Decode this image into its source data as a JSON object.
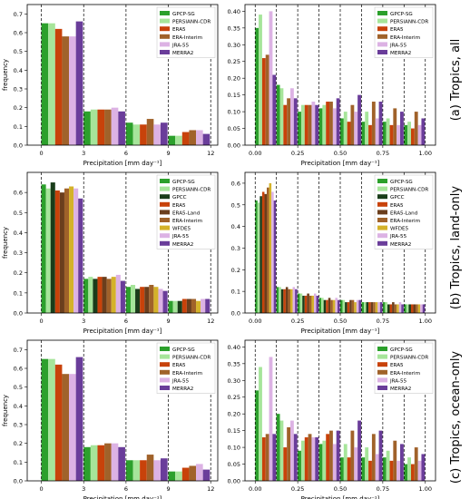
{
  "figure": {
    "row_labels": [
      "(a) Tropics, all",
      "(b) Tropics, land-only",
      "(c) Tropics, ocean-only"
    ]
  },
  "colors": {
    "GPCP-SG": "#2ca02c",
    "PERSIANN-CDR": "#a6e59a",
    "GPCC": "#1a3d1a",
    "ERA5": "#c8420a",
    "ERA5-Land": "#6b3e1c",
    "ERA-Interim": "#a0622a",
    "WFDE5": "#d4b22a",
    "JRA-55": "#dcb2e4",
    "MERRA2": "#6a3d9a"
  },
  "chart_data": [
    {
      "id": "a-left",
      "type": "bar",
      "xlabel": "Precipitation [mm day⁻¹]",
      "ylabel": "frequency",
      "xlim": [
        -1,
        12.5
      ],
      "ylim": [
        0,
        0.75
      ],
      "xticks": [
        0,
        3,
        6,
        9,
        12
      ],
      "yticks": [
        0,
        0.1,
        0.2,
        0.3,
        0.4,
        0.5,
        0.6,
        0.7
      ],
      "bin_edges": [
        0,
        3,
        6,
        9,
        12
      ],
      "legend_loc": "upper right",
      "series": [
        {
          "name": "GPCP-SG",
          "values": [
            0.65,
            0.18,
            0.12,
            0.05
          ]
        },
        {
          "name": "PERSIANN-CDR",
          "values": [
            0.65,
            0.19,
            0.11,
            0.05
          ]
        },
        {
          "name": "ERA5",
          "values": [
            0.62,
            0.19,
            0.11,
            0.07
          ]
        },
        {
          "name": "ERA-Interim",
          "values": [
            0.58,
            0.19,
            0.14,
            0.08
          ]
        },
        {
          "name": "JRA-55",
          "values": [
            0.58,
            0.2,
            0.11,
            0.08
          ]
        },
        {
          "name": "MERRA2",
          "values": [
            0.66,
            0.18,
            0.12,
            0.06
          ]
        }
      ]
    },
    {
      "id": "a-right",
      "type": "bar",
      "xlabel": "Precipitation [mm day⁻¹]",
      "ylabel": "",
      "xlim": [
        -0.06,
        1.06
      ],
      "ylim": [
        0,
        0.42
      ],
      "xticks": [
        0,
        0.25,
        0.5,
        0.75,
        1.0
      ],
      "yticks": [
        0,
        0.05,
        0.1,
        0.15,
        0.2,
        0.25,
        0.3,
        0.35,
        0.4
      ],
      "bin_edges": [
        0,
        0.125,
        0.25,
        0.375,
        0.5,
        0.625,
        0.75,
        0.875,
        1.0
      ],
      "legend_loc": "upper right",
      "series": [
        {
          "name": "GPCP-SG",
          "values": [
            0.35,
            0.18,
            0.1,
            0.11,
            0.08,
            0.07,
            0.07,
            0.06
          ]
        },
        {
          "name": "PERSIANN-CDR",
          "values": [
            0.39,
            0.17,
            0.12,
            0.12,
            0.1,
            0.1,
            0.08,
            0.07
          ]
        },
        {
          "name": "ERA5",
          "values": [
            0.26,
            0.12,
            0.12,
            0.13,
            0.07,
            0.06,
            0.06,
            0.05
          ]
        },
        {
          "name": "ERA-Interim",
          "values": [
            0.27,
            0.14,
            0.12,
            0.13,
            0.12,
            0.13,
            0.11,
            0.1
          ]
        },
        {
          "name": "JRA-55",
          "values": [
            0.4,
            0.17,
            0.13,
            0.11,
            0.1,
            0.08,
            0.06,
            0.06
          ]
        },
        {
          "name": "MERRA2",
          "values": [
            0.21,
            0.14,
            0.12,
            0.14,
            0.15,
            0.13,
            0.1,
            0.08
          ]
        }
      ]
    },
    {
      "id": "b-left",
      "type": "bar",
      "xlabel": "Precipitation [mm day⁻¹]",
      "ylabel": "frequency",
      "xlim": [
        -1,
        12.5
      ],
      "ylim": [
        0,
        0.7
      ],
      "xticks": [
        0,
        3,
        6,
        9,
        12
      ],
      "yticks": [
        0,
        0.1,
        0.2,
        0.3,
        0.4,
        0.5,
        0.6
      ],
      "bin_edges": [
        0,
        3,
        6,
        9,
        12
      ],
      "legend_loc": "upper right",
      "series": [
        {
          "name": "GPCP-SG",
          "values": [
            0.64,
            0.17,
            0.13,
            0.06
          ]
        },
        {
          "name": "PERSIANN-CDR",
          "values": [
            0.62,
            0.18,
            0.14,
            0.06
          ]
        },
        {
          "name": "GPCC",
          "values": [
            0.65,
            0.17,
            0.12,
            0.06
          ]
        },
        {
          "name": "ERA5",
          "values": [
            0.61,
            0.18,
            0.13,
            0.07
          ]
        },
        {
          "name": "ERA5-Land",
          "values": [
            0.6,
            0.18,
            0.13,
            0.07
          ]
        },
        {
          "name": "ERA-Interim",
          "values": [
            0.62,
            0.17,
            0.14,
            0.07
          ]
        },
        {
          "name": "WFDE5",
          "values": [
            0.63,
            0.18,
            0.13,
            0.06
          ]
        },
        {
          "name": "JRA-55",
          "values": [
            0.62,
            0.19,
            0.12,
            0.07
          ]
        },
        {
          "name": "MERRA2",
          "values": [
            0.57,
            0.16,
            0.11,
            0.07
          ]
        }
      ]
    },
    {
      "id": "b-right",
      "type": "bar",
      "xlabel": "Precipitation [mm day⁻¹]",
      "ylabel": "",
      "xlim": [
        -0.06,
        1.06
      ],
      "ylim": [
        0,
        0.65
      ],
      "xticks": [
        0,
        0.25,
        0.5,
        0.75,
        1.0
      ],
      "yticks": [
        0,
        0.1,
        0.2,
        0.3,
        0.4,
        0.5,
        0.6
      ],
      "bin_edges": [
        0,
        0.125,
        0.25,
        0.375,
        0.5,
        0.625,
        0.75,
        0.875,
        1.0
      ],
      "legend_loc": "upper right",
      "series": [
        {
          "name": "GPCP-SG",
          "values": [
            0.52,
            0.12,
            0.09,
            0.07,
            0.06,
            0.05,
            0.05,
            0.04
          ]
        },
        {
          "name": "PERSIANN-CDR",
          "values": [
            0.51,
            0.12,
            0.09,
            0.07,
            0.06,
            0.05,
            0.05,
            0.04
          ]
        },
        {
          "name": "GPCC",
          "values": [
            0.54,
            0.11,
            0.08,
            0.06,
            0.05,
            0.05,
            0.04,
            0.04
          ]
        },
        {
          "name": "ERA5",
          "values": [
            0.56,
            0.11,
            0.08,
            0.06,
            0.05,
            0.05,
            0.04,
            0.04
          ]
        },
        {
          "name": "ERA5-Land",
          "values": [
            0.55,
            0.12,
            0.09,
            0.07,
            0.06,
            0.05,
            0.05,
            0.04
          ]
        },
        {
          "name": "ERA-Interim",
          "values": [
            0.58,
            0.11,
            0.08,
            0.06,
            0.06,
            0.05,
            0.04,
            0.04
          ]
        },
        {
          "name": "WFDE5",
          "values": [
            0.6,
            0.11,
            0.08,
            0.06,
            0.05,
            0.05,
            0.04,
            0.04
          ]
        },
        {
          "name": "JRA-55",
          "values": [
            0.56,
            0.12,
            0.09,
            0.07,
            0.06,
            0.05,
            0.05,
            0.04
          ]
        },
        {
          "name": "MERRA2",
          "values": [
            0.52,
            0.11,
            0.08,
            0.06,
            0.06,
            0.05,
            0.04,
            0.04
          ]
        }
      ]
    },
    {
      "id": "c-left",
      "type": "bar",
      "xlabel": "Precipitation [mm day⁻¹]",
      "ylabel": "frequency",
      "xlim": [
        -1,
        12.5
      ],
      "ylim": [
        0,
        0.75
      ],
      "xticks": [
        0,
        3,
        6,
        9,
        12
      ],
      "yticks": [
        0,
        0.1,
        0.2,
        0.3,
        0.4,
        0.5,
        0.6,
        0.7
      ],
      "bin_edges": [
        0,
        3,
        6,
        9,
        12
      ],
      "legend_loc": "upper right",
      "series": [
        {
          "name": "GPCP-SG",
          "values": [
            0.65,
            0.18,
            0.11,
            0.05
          ]
        },
        {
          "name": "PERSIANN-CDR",
          "values": [
            0.65,
            0.19,
            0.11,
            0.05
          ]
        },
        {
          "name": "ERA5",
          "values": [
            0.62,
            0.19,
            0.11,
            0.07
          ]
        },
        {
          "name": "ERA-Interim",
          "values": [
            0.57,
            0.2,
            0.14,
            0.08
          ]
        },
        {
          "name": "JRA-55",
          "values": [
            0.57,
            0.2,
            0.11,
            0.09
          ]
        },
        {
          "name": "MERRA2",
          "values": [
            0.66,
            0.18,
            0.12,
            0.06
          ]
        }
      ]
    },
    {
      "id": "c-right",
      "type": "bar",
      "xlabel": "Precipitation [mm day⁻¹]",
      "ylabel": "",
      "xlim": [
        -0.06,
        1.06
      ],
      "ylim": [
        0,
        0.42
      ],
      "xticks": [
        0,
        0.25,
        0.5,
        0.75,
        1.0
      ],
      "yticks": [
        0,
        0.05,
        0.1,
        0.15,
        0.2,
        0.25,
        0.3,
        0.35,
        0.4
      ],
      "bin_edges": [
        0,
        0.125,
        0.25,
        0.375,
        0.5,
        0.625,
        0.75,
        0.875,
        1.0
      ],
      "legend_loc": "upper right",
      "series": [
        {
          "name": "GPCP-SG",
          "values": [
            0.27,
            0.2,
            0.09,
            0.11,
            0.07,
            0.07,
            0.07,
            0.05
          ]
        },
        {
          "name": "PERSIANN-CDR",
          "values": [
            0.34,
            0.18,
            0.12,
            0.12,
            0.11,
            0.1,
            0.09,
            0.07
          ]
        },
        {
          "name": "ERA5",
          "values": [
            0.13,
            0.1,
            0.13,
            0.14,
            0.07,
            0.06,
            0.06,
            0.05
          ]
        },
        {
          "name": "ERA-Interim",
          "values": [
            0.14,
            0.16,
            0.14,
            0.15,
            0.15,
            0.14,
            0.12,
            0.1
          ]
        },
        {
          "name": "JRA-55",
          "values": [
            0.37,
            0.18,
            0.13,
            0.11,
            0.1,
            0.08,
            0.06,
            0.06
          ]
        },
        {
          "name": "MERRA2",
          "values": [
            0.14,
            0.14,
            0.13,
            0.15,
            0.18,
            0.15,
            0.11,
            0.08
          ]
        }
      ]
    }
  ]
}
